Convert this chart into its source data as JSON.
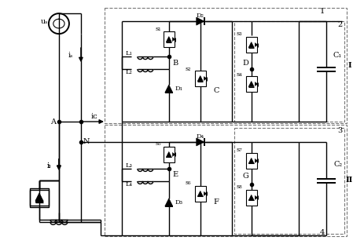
{
  "bg_color": "#ffffff",
  "fig_width": 4.49,
  "fig_height": 3.11,
  "dpi": 100,
  "labels": {
    "us": "uₛ",
    "is": "iₛ",
    "ic": "iᴄ",
    "iL": "iₗ",
    "A": "A",
    "N": "N",
    "B": "B",
    "C": "C",
    "D": "D",
    "E": "E",
    "F": "F",
    "G": "G",
    "I": "I",
    "II": "II",
    "1": "1",
    "2": "2",
    "3": "3",
    "4": "4",
    "L1": "L₁",
    "L2": "L₂",
    "L3": "L₃",
    "L4": "L₄",
    "C1": "C₁",
    "C2": "C₂",
    "S1": "s₁",
    "S2": "s₂",
    "S3": "s₃",
    "S4": "s₄",
    "S5": "s₅",
    "S6": "s₆",
    "S7": "s₇",
    "S8": "s₈",
    "D1": "D₁",
    "D2": "D₂",
    "D3": "D₃",
    "D4": "D₄"
  }
}
